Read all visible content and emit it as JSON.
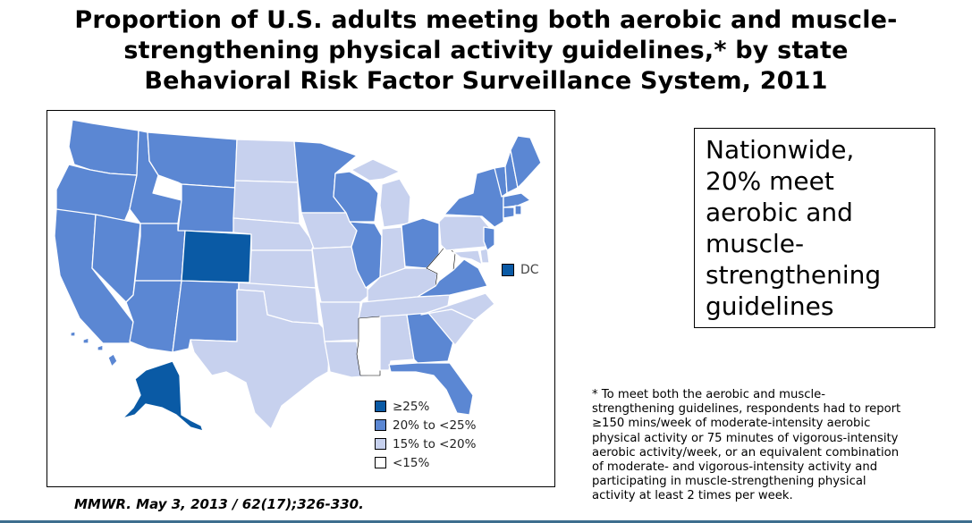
{
  "title": {
    "line1": "Proportion of U.S. adults meeting both aerobic and muscle-",
    "line2": "strengthening physical activity guidelines,* by state",
    "line3": "Behavioral Risk Factor Surveillance System, 2011"
  },
  "colors": {
    "ge25": "#0a5aa5",
    "p20to25": "#5b87d3",
    "p15to20": "#c7d1ee",
    "lt15": "#ffffff",
    "border": "#ffffff",
    "frame": "#000000",
    "accent_rule": "#3d6e8e"
  },
  "legend": {
    "items": [
      {
        "label": "≥25%",
        "color": "#0a5aa5"
      },
      {
        "label": "20% to <25%",
        "color": "#5b87d3"
      },
      {
        "label": "15% to <20%",
        "color": "#c7d1ee"
      },
      {
        "label": "<15%",
        "color": "#ffffff"
      }
    ]
  },
  "dc": {
    "label": "DC",
    "color": "#0a5aa5"
  },
  "callout": {
    "lines": [
      "Nationwide,",
      "20% meet",
      "aerobic and",
      "muscle-",
      "strengthening",
      "guidelines"
    ]
  },
  "footnote": {
    "lines": [
      "* To meet both the aerobic and muscle-",
      "strengthening guidelines, respondents had to report",
      "≥150 mins/week of moderate-intensity aerobic",
      "physical activity or 75 minutes of vigorous-intensity",
      "aerobic activity/week, or an equivalent combination",
      "of moderate- and vigorous-intensity activity and",
      "participating in muscle-strengthening physical",
      "activity at least 2 times per week."
    ]
  },
  "citation": "MMWR.  May 3, 2013 / 62(17);326-330."
}
